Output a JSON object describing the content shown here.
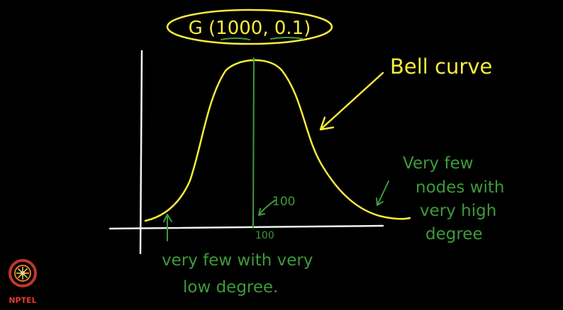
{
  "title": "G (1000, 0.1)",
  "annotations": {
    "bell_curve": "Bell curve",
    "peak_label": "100",
    "axis_tick": "100",
    "right_note": [
      "Very few",
      "nodes with",
      "very high",
      "degree"
    ],
    "left_note": [
      "very few with very",
      "low degree."
    ]
  },
  "logo": {
    "text": "NPTEL",
    "icon": "nptel-logo-icon"
  },
  "colors": {
    "curve": "#f6ec3c",
    "notes": "#3e9b3a",
    "axes": "#f2f2f2",
    "logo": "#e53b2a"
  }
}
